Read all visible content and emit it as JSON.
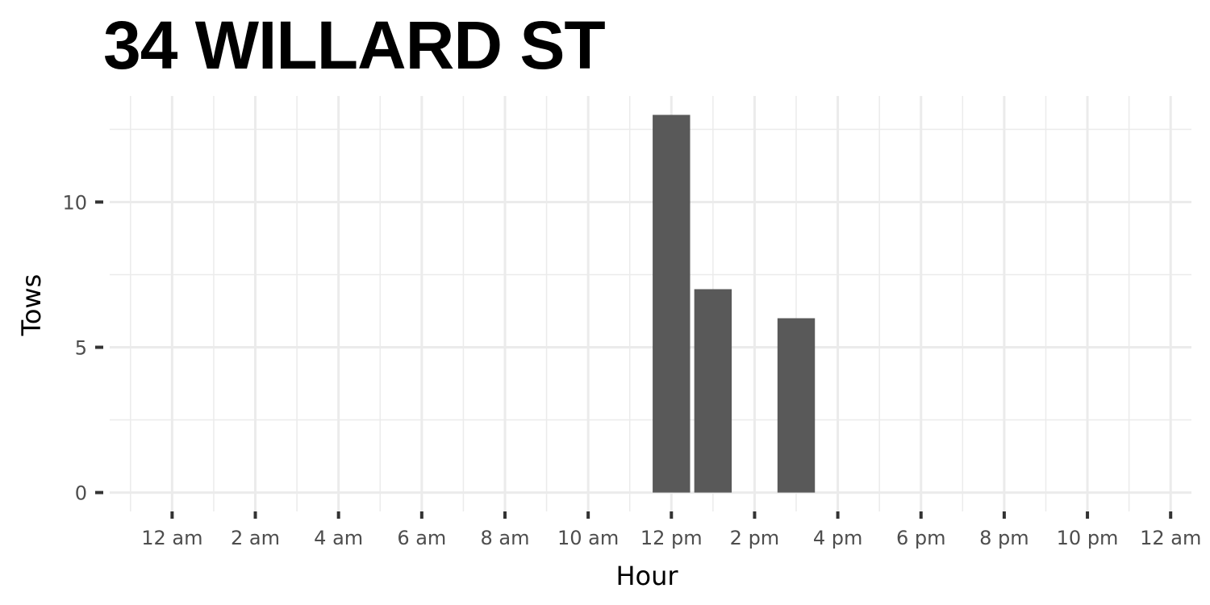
{
  "chart_data": {
    "type": "bar",
    "title": "34 WILLARD ST",
    "xlabel": "Hour",
    "ylabel": "Tows",
    "x_ticks": [
      "12 am",
      "2 am",
      "4 am",
      "6 am",
      "8 am",
      "10 am",
      "12 pm",
      "2 pm",
      "4 pm",
      "6 pm",
      "8 pm",
      "10 pm",
      "12 am"
    ],
    "y_ticks": [
      0,
      5,
      10
    ],
    "xlim": [
      -1.5,
      24.5
    ],
    "ylim": [
      -0.65,
      13.65
    ],
    "bars": [
      {
        "hour": 12,
        "value": 13
      },
      {
        "hour": 13,
        "value": 7
      },
      {
        "hour": 15,
        "value": 6
      }
    ],
    "bar_color": "#595959",
    "grid": true,
    "grid_color": "#ebebeb"
  }
}
